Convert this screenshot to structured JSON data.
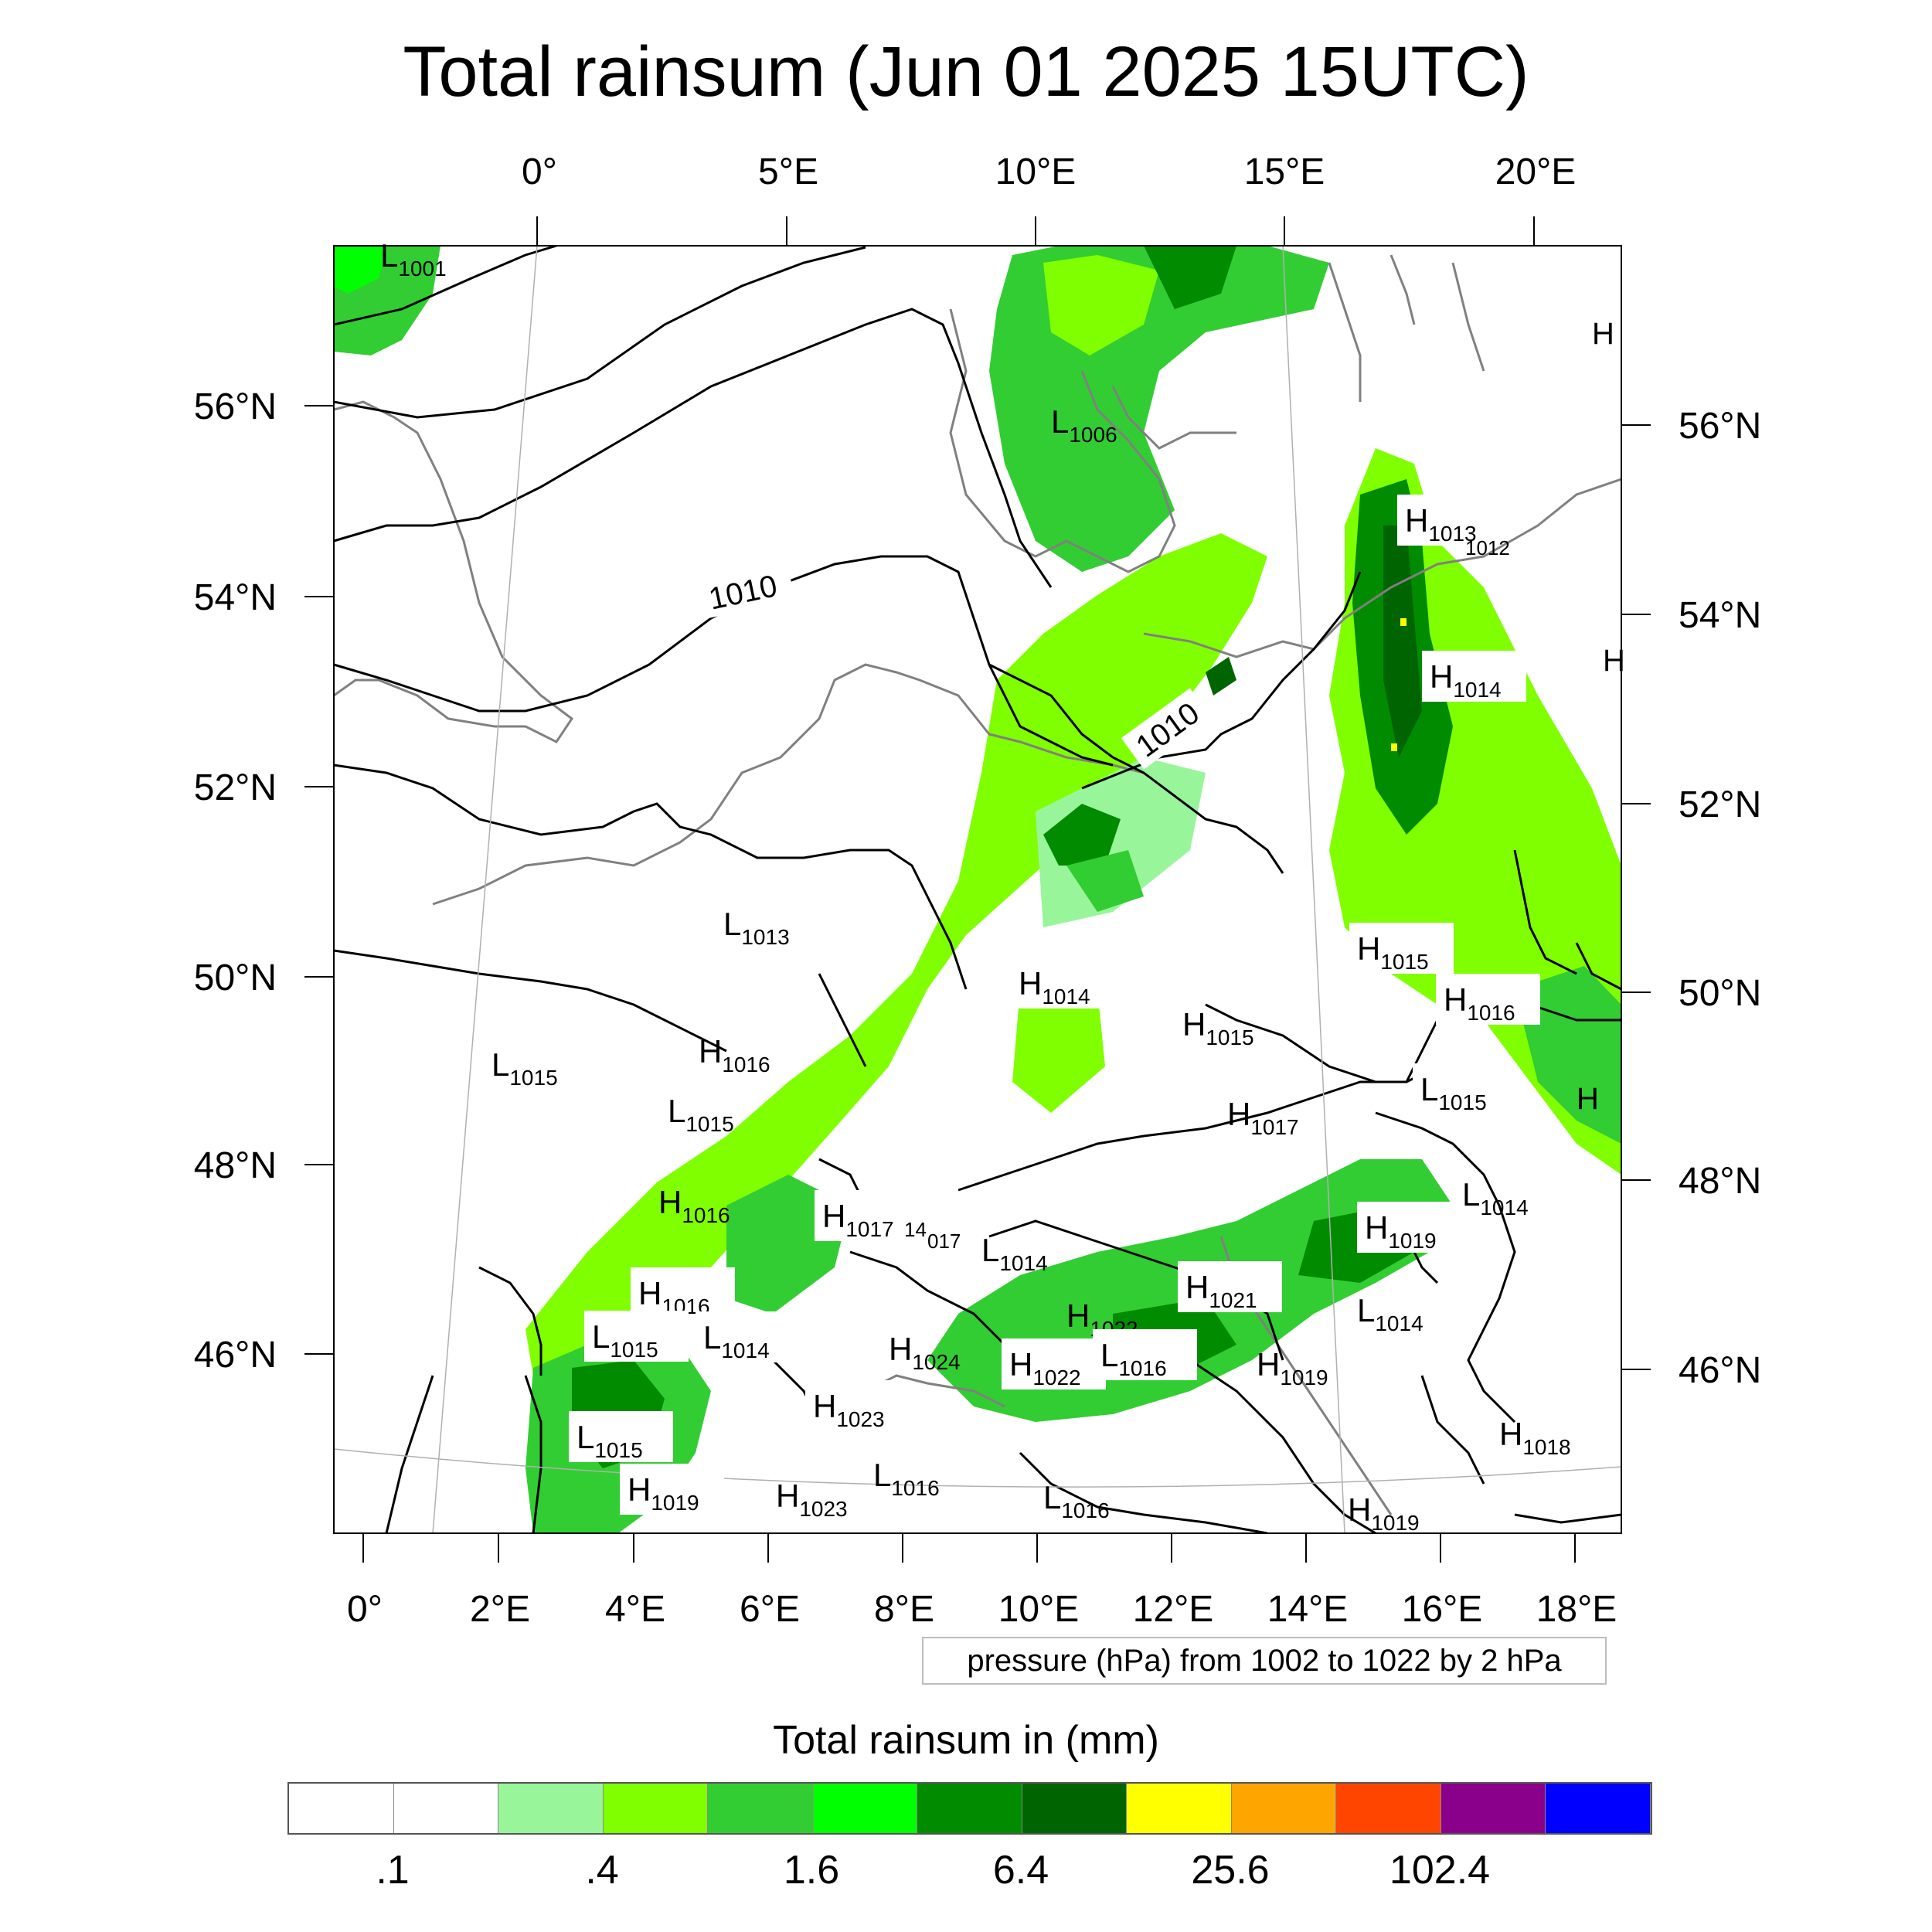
{
  "title": "Total rainsum (Jun 01 2025 15UTC)",
  "top_axis_labels": [
    "0°",
    "5°E",
    "10°E",
    "15°E",
    "20°E"
  ],
  "bottom_axis_labels": [
    "0°",
    "2°E",
    "4°E",
    "6°E",
    "8°E",
    "10°E",
    "12°E",
    "14°E",
    "16°E",
    "18°E"
  ],
  "left_axis_labels": [
    "56°N",
    "54°N",
    "52°N",
    "50°N",
    "48°N",
    "46°N"
  ],
  "right_axis_labels": [
    "56°N",
    "54°N",
    "52°N",
    "50°N",
    "48°N",
    "46°N"
  ],
  "contour_labels": [
    "1010",
    "1010"
  ],
  "pressure_centers": [
    {
      "type": "L",
      "value": "1001"
    },
    {
      "type": "L",
      "value": "1006"
    },
    {
      "type": "H",
      "value": "1013"
    },
    {
      "type": "H",
      "value": "1014"
    },
    {
      "type": "L",
      "value": "1013"
    },
    {
      "type": "H",
      "value": "1014"
    },
    {
      "type": "H",
      "value": "1015"
    },
    {
      "type": "H",
      "value": "1015"
    },
    {
      "type": "H",
      "value": "1016"
    },
    {
      "type": "L",
      "value": "1015"
    },
    {
      "type": "H",
      "value": "1016"
    },
    {
      "type": "L",
      "value": "1015"
    },
    {
      "type": "H",
      "value": "1017"
    },
    {
      "type": "L",
      "value": "1015"
    },
    {
      "type": "H",
      "value": "1016"
    },
    {
      "type": "H",
      "value": "1017"
    },
    {
      "type": "L",
      "value": "1014"
    },
    {
      "type": "L",
      "value": "1014"
    },
    {
      "type": "H",
      "value": "1019"
    },
    {
      "type": "H",
      "value": "1016"
    },
    {
      "type": "H",
      "value": "1021"
    },
    {
      "type": "L",
      "value": "1015"
    },
    {
      "type": "L",
      "value": "1014"
    },
    {
      "type": "H",
      "value": "1022"
    },
    {
      "type": "L",
      "value": "1014"
    },
    {
      "type": "H",
      "value": "1024"
    },
    {
      "type": "H",
      "value": "1022"
    },
    {
      "type": "L",
      "value": "1016"
    },
    {
      "type": "H",
      "value": "1019"
    },
    {
      "type": "H",
      "value": "1023"
    },
    {
      "type": "L",
      "value": "1015"
    },
    {
      "type": "L",
      "value": "1016"
    },
    {
      "type": "H",
      "value": "1018"
    },
    {
      "type": "H",
      "value": "1019"
    },
    {
      "type": "H",
      "value": "1023"
    },
    {
      "type": "L",
      "value": "1016"
    },
    {
      "type": "H",
      "value": "1019"
    }
  ],
  "partial_labels": [
    "H",
    "H",
    "H",
    "1012",
    "14",
    "017"
  ],
  "pressure_legend": "pressure (hPa) from 1002 to 1022 by 2 hPa",
  "colorbar": {
    "title": "Total rainsum in (mm)",
    "colors": [
      "#ffffff",
      "#ffffff",
      "#99f599",
      "#80ff00",
      "#32cd32",
      "#00ff00",
      "#008b00",
      "#006400",
      "#ffff00",
      "#ffa500",
      "#ff4500",
      "#8b008b",
      "#0000ff"
    ],
    "tick_labels": [
      ".1",
      ".4",
      "1.6",
      "6.4",
      "25.6",
      "102.4"
    ]
  }
}
